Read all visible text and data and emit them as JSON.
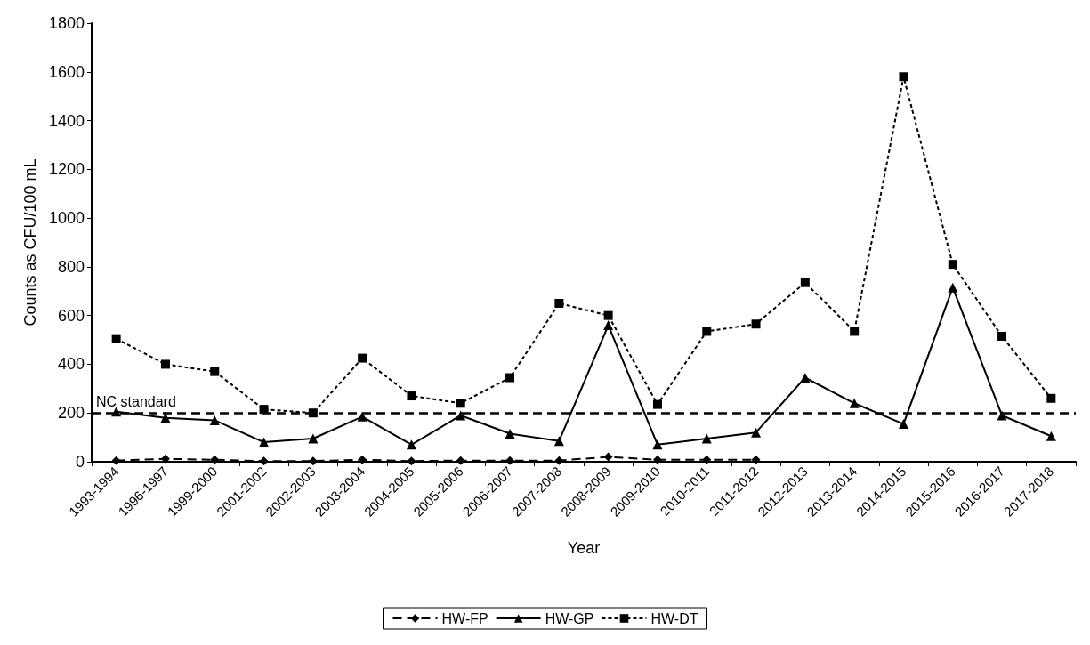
{
  "chart_data": {
    "type": "line",
    "xlabel": "Year",
    "ylabel": "Counts as CFU/100 mL",
    "categories": [
      "1993-1994",
      "1996-1997",
      "1999-2000",
      "2001-2002",
      "2002-2003",
      "2003-2004",
      "2004-2005",
      "2005-2006",
      "2006-2007",
      "2007-2008",
      "2008-2009",
      "2009-2010",
      "2010-2011",
      "2011-2012",
      "2012-2013",
      "2013-2014",
      "2014-2015",
      "2015-2016",
      "2016-2017",
      "2017-2018"
    ],
    "series": [
      {
        "name": "HW-FP",
        "color": "#000000",
        "marker": "diamond",
        "line_style": "dashed",
        "values": [
          5,
          12,
          8,
          3,
          3,
          8,
          3,
          5,
          5,
          5,
          20,
          8,
          8,
          8,
          null,
          null,
          null,
          null,
          null,
          null
        ]
      },
      {
        "name": "HW-GP",
        "color": "#000000",
        "marker": "triangle",
        "line_style": "solid",
        "values": [
          205,
          180,
          170,
          80,
          95,
          185,
          70,
          190,
          115,
          85,
          560,
          70,
          95,
          120,
          345,
          240,
          155,
          715,
          190,
          105
        ]
      },
      {
        "name": "HW-DT",
        "color": "#000000",
        "marker": "square",
        "line_style": "dotted",
        "values": [
          505,
          400,
          370,
          215,
          200,
          425,
          270,
          240,
          345,
          650,
          600,
          235,
          535,
          565,
          735,
          535,
          1580,
          810,
          515,
          260
        ]
      }
    ],
    "ylim": [
      0,
      1800
    ],
    "yticks": [
      0,
      200,
      400,
      600,
      800,
      1000,
      1200,
      1400,
      1600,
      1800
    ],
    "ref_lines": [
      {
        "axis": "y",
        "value": 200,
        "label": "NC standard",
        "color": "#000000",
        "line_style": "dashed"
      }
    ],
    "grid": false,
    "legend": "bottom"
  }
}
